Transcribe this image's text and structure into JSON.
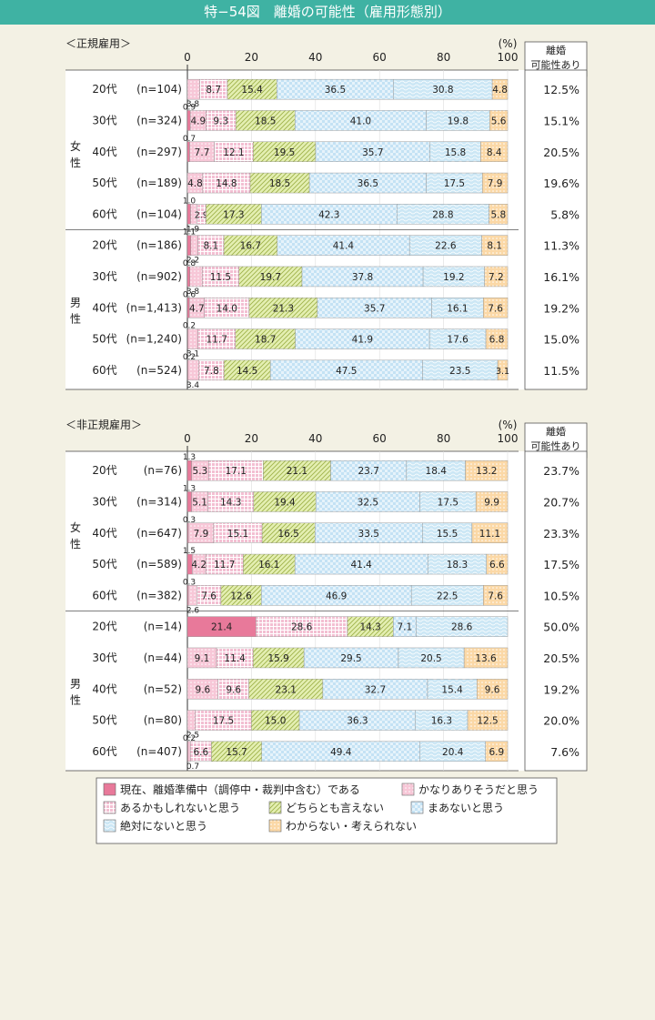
{
  "title": "特−54図　離婚の可能性（雇用形態別）",
  "colors": {
    "header": "#3fb2a3",
    "cat1": "#e8799a",
    "cat2": "#f7c7d7",
    "cat3": "#f3bfd2",
    "cat4": "#e4efb2",
    "cat5": "#c4e2f4",
    "cat6": "#cce7f5",
    "cat7": "#fbd8a6"
  },
  "chart_data": [
    {
      "type": "bar",
      "orientation": "horizontal",
      "stacked": true,
      "panel_label": "＜正規雇用＞",
      "unit_label": "(%)",
      "xlim": [
        0,
        100
      ],
      "x_ticks": [
        "0",
        "20",
        "40",
        "60",
        "80",
        "100"
      ],
      "right_header": [
        "離婚",
        "可能性あり"
      ],
      "groups": [
        {
          "label": "女性",
          "rows": [
            {
              "age": "20代",
              "n": "(n=104)",
              "values": [
                0,
                3.8,
                8.7,
                15.4,
                36.5,
                30.8,
                4.8
              ],
              "labels": [
                "",
                "3.8",
                "8.7",
                "15.4",
                "36.5",
                "30.8",
                "4.8"
              ],
              "rate": "12.5%"
            },
            {
              "age": "30代",
              "n": "(n=324)",
              "values": [
                0.9,
                4.9,
                9.3,
                18.5,
                41.0,
                19.8,
                5.6
              ],
              "labels": [
                "0.9",
                "4.9",
                "9.3",
                "18.5",
                "41.0",
                "19.8",
                "5.6"
              ],
              "rate": "15.1%"
            },
            {
              "age": "40代",
              "n": "(n=297)",
              "values": [
                0.7,
                7.7,
                12.1,
                19.5,
                35.7,
                15.8,
                8.4
              ],
              "labels": [
                "0.7",
                "7.7",
                "12.1",
                "19.5",
                "35.7",
                "15.8",
                "8.4"
              ],
              "rate": "20.5%"
            },
            {
              "age": "50代",
              "n": "(n=189)",
              "values": [
                0,
                4.8,
                14.8,
                18.5,
                36.5,
                17.5,
                7.9
              ],
              "labels": [
                "",
                "4.8",
                "14.8",
                "18.5",
                "36.5",
                "17.5",
                "7.9"
              ],
              "rate": "19.6%"
            },
            {
              "age": "60代",
              "n": "(n=104)",
              "values": [
                1.0,
                1.9,
                2.9,
                17.3,
                42.3,
                28.8,
                5.8
              ],
              "labels": [
                "1.0",
                "1.9",
                "2.9",
                "17.3",
                "42.3",
                "28.8",
                "5.8"
              ],
              "rate": "5.8%"
            }
          ]
        },
        {
          "label": "男性",
          "rows": [
            {
              "age": "20代",
              "n": "(n=186)",
              "values": [
                1.1,
                2.2,
                8.1,
                16.7,
                41.4,
                22.6,
                8.1
              ],
              "labels": [
                "1.1",
                "2.2",
                "8.1",
                "16.7",
                "41.4",
                "22.6",
                "8.1"
              ],
              "rate": "11.3%"
            },
            {
              "age": "30代",
              "n": "(n=902)",
              "values": [
                0.8,
                3.8,
                11.5,
                19.7,
                37.8,
                19.2,
                7.2
              ],
              "labels": [
                "0.8",
                "3.8",
                "11.5",
                "19.7",
                "37.8",
                "19.2",
                "7.2"
              ],
              "rate": "16.1%"
            },
            {
              "age": "40代",
              "n": "(n=1,413)",
              "values": [
                0.6,
                4.7,
                14.0,
                21.3,
                35.7,
                16.1,
                7.6
              ],
              "labels": [
                "0.6",
                "4.7",
                "14.0",
                "21.3",
                "35.7",
                "16.1",
                "7.6"
              ],
              "rate": "19.2%"
            },
            {
              "age": "50代",
              "n": "(n=1,240)",
              "values": [
                0.2,
                3.1,
                11.7,
                18.7,
                41.9,
                17.6,
                6.8
              ],
              "labels": [
                "0.2",
                "3.1",
                "11.7",
                "18.7",
                "41.9",
                "17.6",
                "6.8"
              ],
              "rate": "15.0%"
            },
            {
              "age": "60代",
              "n": "(n=524)",
              "values": [
                0.2,
                3.4,
                7.8,
                14.5,
                47.5,
                23.5,
                3.1
              ],
              "labels": [
                "0.2",
                "3.4",
                "7.8",
                "14.5",
                "47.5",
                "23.5",
                "3.1"
              ],
              "rate": "11.5%"
            }
          ]
        }
      ]
    },
    {
      "type": "bar",
      "orientation": "horizontal",
      "stacked": true,
      "panel_label": "＜非正規雇用＞",
      "unit_label": "(%)",
      "xlim": [
        0,
        100
      ],
      "x_ticks": [
        "0",
        "20",
        "40",
        "60",
        "80",
        "100"
      ],
      "right_header": [
        "離婚",
        "可能性あり"
      ],
      "groups": [
        {
          "label": "女性",
          "rows": [
            {
              "age": "20代",
              "n": "(n=76)",
              "values": [
                1.3,
                5.3,
                17.1,
                21.1,
                23.7,
                18.4,
                13.2
              ],
              "labels": [
                "1.3",
                "5.3",
                "17.1",
                "21.1",
                "23.7",
                "18.4",
                "13.2"
              ],
              "rate": "23.7%"
            },
            {
              "age": "30代",
              "n": "(n=314)",
              "values": [
                1.3,
                5.1,
                14.3,
                19.4,
                32.5,
                17.5,
                9.9
              ],
              "labels": [
                "1.3",
                "5.1",
                "14.3",
                "19.4",
                "32.5",
                "17.5",
                "9.9"
              ],
              "rate": "20.7%"
            },
            {
              "age": "40代",
              "n": "(n=647)",
              "values": [
                0.3,
                7.9,
                15.1,
                16.5,
                33.5,
                15.5,
                11.1
              ],
              "labels": [
                "0.3",
                "7.9",
                "15.1",
                "16.5",
                "33.5",
                "15.5",
                "11.1"
              ],
              "rate": "23.3%"
            },
            {
              "age": "50代",
              "n": "(n=589)",
              "values": [
                1.5,
                4.2,
                11.7,
                16.1,
                41.4,
                18.3,
                6.6
              ],
              "labels": [
                "1.5",
                "4.2",
                "11.7",
                "16.1",
                "41.4",
                "18.3",
                "6.6"
              ],
              "rate": "17.5%"
            },
            {
              "age": "60代",
              "n": "(n=382)",
              "values": [
                0.3,
                2.6,
                7.6,
                12.6,
                46.9,
                22.5,
                7.6
              ],
              "labels": [
                "0.3",
                "2.6",
                "7.6",
                "12.6",
                "46.9",
                "22.5",
                "7.6"
              ],
              "rate": "10.5%"
            }
          ]
        },
        {
          "label": "男性",
          "rows": [
            {
              "age": "20代",
              "n": "(n=14)",
              "values": [
                21.4,
                0,
                28.6,
                14.3,
                7.1,
                28.6,
                0
              ],
              "labels": [
                "21.4",
                "",
                "28.6",
                "14.3",
                "7.1",
                "28.6",
                ""
              ],
              "rate": "50.0%"
            },
            {
              "age": "30代",
              "n": "(n=44)",
              "values": [
                0,
                9.1,
                11.4,
                15.9,
                29.5,
                20.5,
                13.6
              ],
              "labels": [
                "",
                "9.1",
                "11.4",
                "15.9",
                "29.5",
                "20.5",
                "13.6"
              ],
              "rate": "20.5%"
            },
            {
              "age": "40代",
              "n": "(n=52)",
              "values": [
                0,
                9.6,
                9.6,
                23.1,
                32.7,
                15.4,
                9.6
              ],
              "labels": [
                "",
                "9.6",
                "9.6",
                "23.1",
                "32.7",
                "15.4",
                "9.6"
              ],
              "rate": "19.2%"
            },
            {
              "age": "50代",
              "n": "(n=80)",
              "values": [
                0,
                2.5,
                17.5,
                15.0,
                36.3,
                16.3,
                12.5
              ],
              "labels": [
                "",
                "2.5",
                "17.5",
                "15.0",
                "36.3",
                "16.3",
                "12.5"
              ],
              "rate": "20.0%"
            },
            {
              "age": "60代",
              "n": "(n=407)",
              "values": [
                0.2,
                0.7,
                6.6,
                15.7,
                49.4,
                20.4,
                6.9
              ],
              "labels": [
                "0.2",
                "0.7",
                "6.6",
                "15.7",
                "49.4",
                "20.4",
                "6.9"
              ],
              "rate": "7.6%"
            }
          ]
        }
      ]
    }
  ],
  "legend": [
    {
      "label": "現在、離婚準備中（調停中・裁判中含む）である",
      "color": "#e8799a",
      "pattern": "solid"
    },
    {
      "label": "かなりありそうだと思う",
      "color": "#f7c7d7",
      "pattern": "dots"
    },
    {
      "label": "あるかもしれないと思う",
      "color": "#f3bfd2",
      "pattern": "grid"
    },
    {
      "label": "どちらとも言えない",
      "color": "#e4efb2",
      "pattern": "diagonal"
    },
    {
      "label": "まあないと思う",
      "color": "#c4e2f4",
      "pattern": "checker"
    },
    {
      "label": "絶対にないと思う",
      "color": "#cce7f5",
      "pattern": "wave"
    },
    {
      "label": "わからない・考えられない",
      "color": "#fbd8a6",
      "pattern": "dots"
    }
  ]
}
